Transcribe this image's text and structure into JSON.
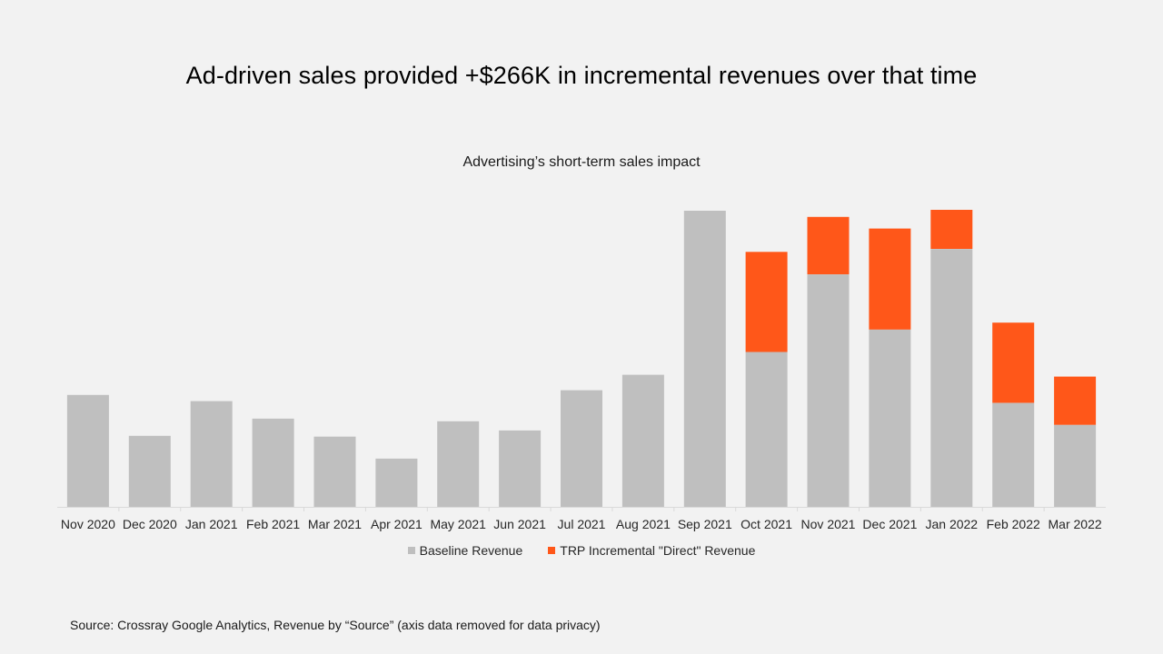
{
  "page": {
    "title": "Ad-driven sales provided +$266K in incremental revenues over that time",
    "source": "Source: Crossray Google Analytics, Revenue by “Source” (axis data removed for data privacy)"
  },
  "colors": {
    "baseline": "#bfbfbf",
    "incremental": "#ff5719",
    "axis": "#d9d9d9",
    "background": "#f2f2f2"
  },
  "chart_data": {
    "type": "bar",
    "stacked": true,
    "title": "Advertising’s short-term sales impact",
    "xlabel": "",
    "ylabel": "",
    "y_axis_labels_visible": false,
    "grid": false,
    "legend_position": "bottom",
    "ylim": [
      0,
      100
    ],
    "categories": [
      "Nov 2020",
      "Dec 2020",
      "Jan 2021",
      "Feb 2021",
      "Mar 2021",
      "Apr 2021",
      "May 2021",
      "Jun 2021",
      "Jul 2021",
      "Aug 2021",
      "Sep 2021",
      "Oct 2021",
      "Nov 2021",
      "Dec 2021",
      "Jan 2022",
      "Feb 2022",
      "Mar 2022"
    ],
    "series": [
      {
        "name": "Baseline Revenue",
        "color": "#bfbfbf",
        "values": [
          37.8,
          24.0,
          35.7,
          29.8,
          23.7,
          16.3,
          28.9,
          25.8,
          39.4,
          44.6,
          100.0,
          52.3,
          78.5,
          59.9,
          87.1,
          35.1,
          27.7
        ]
      },
      {
        "name": "TRP Incremental \"Direct\" Revenue",
        "color": "#ff5719",
        "values": [
          0,
          0,
          0,
          0,
          0,
          0,
          0,
          0,
          0,
          0,
          0,
          33.8,
          19.4,
          34.1,
          13.2,
          27.1,
          16.3
        ]
      }
    ]
  }
}
